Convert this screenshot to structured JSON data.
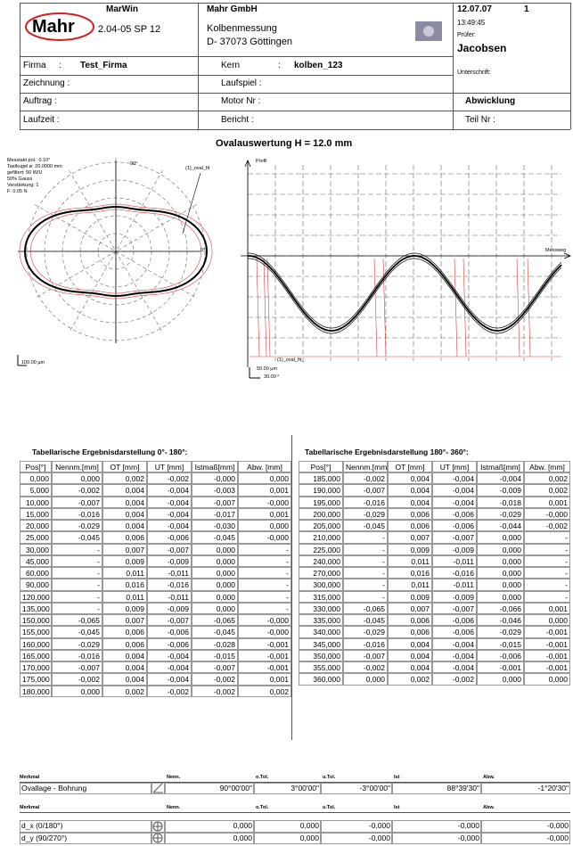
{
  "header": {
    "logo": "Mahr",
    "product": "MarWin",
    "version": "2.04-05 SP 12",
    "company": "Mahr GmbH",
    "department": "Kolbenmessung",
    "address": "D- 37073 Göttingen",
    "date": "12.07.07",
    "page": "1",
    "time": "13:49:45",
    "examiner_label": "Prüfer:",
    "examiner": "Jacobsen",
    "signature_label": "Unterschrift:"
  },
  "info": {
    "firma_label": "Firma",
    "firma_colon": ":",
    "firma": "Test_Firma",
    "kern_label": "Kern",
    "kern_colon": ":",
    "kern": "kolben_123",
    "zeichnung": "Zeichnung :",
    "laufspiel": "Laufspiel :",
    "auftrag": "Auftrag   :",
    "motor": "Motor Nr :",
    "abwicklung": "Abwicklung",
    "laufzeit": "Laufzeit   :",
    "bericht": "Bericht   :",
    "teil": "Teil Nr   :"
  },
  "title": "Ovalauswertung H = 12.0 mm",
  "polar": {
    "params": [
      "Messtakt pol.: 0.10°",
      "Tastkugel ø: 20.0000 mm",
      "gefiltert: 50 W/U",
      "50% Gauss",
      "Verstärkung: 1",
      "F: 0.05 N"
    ],
    "angle_top": "90°",
    "angle_right": "0°",
    "curve_label": "(1)_oval_fit",
    "scale": "100.00 µm"
  },
  "profile": {
    "y_label": "Profil",
    "x_label": "Messweg",
    "curve_label": "(1)_oval_fit_",
    "scale_y": "50.00 µm",
    "scale_x": "30.00 °"
  },
  "table_left": {
    "title": "Tabellarische Ergebnisdarstellung 0°- 180°:",
    "columns": [
      "Pos[°]",
      "Nennm.[mm]",
      "OT [mm]",
      "UT [mm]",
      "Istmaß[mm]",
      "Abw. [mm]"
    ],
    "rows": [
      [
        "0,000",
        "0,000",
        "0,002",
        "-0,002",
        "-0,000",
        "0,000"
      ],
      [
        "5,000",
        "-0,002",
        "0,004",
        "-0,004",
        "-0,003",
        "0,001"
      ],
      [
        "10,000",
        "-0,007",
        "0,004",
        "-0,004",
        "-0,007",
        "-0,000"
      ],
      [
        "15,000",
        "-0,016",
        "0,004",
        "-0,004",
        "-0,017",
        "0,001"
      ],
      [
        "20,000",
        "-0,029",
        "0,004",
        "-0,004",
        "-0,030",
        "0,000"
      ],
      [
        "25,000",
        "-0,045",
        "0,006",
        "-0,006",
        "-0,045",
        "-0,000"
      ],
      [
        "30,000",
        "-",
        "0,007",
        "-0,007",
        "0,000",
        "-"
      ],
      [
        "45,000",
        "-",
        "0,009",
        "-0,009",
        "0,000",
        "-"
      ],
      [
        "60,000",
        "-",
        "0,011",
        "-0,011",
        "0,000",
        "-"
      ],
      [
        "90,000",
        "-",
        "0,016",
        "-0,016",
        "0,000",
        "-"
      ],
      [
        "120,000",
        "-",
        "0,011",
        "-0,011",
        "0,000",
        "-"
      ],
      [
        "135,000",
        "-",
        "0,009",
        "-0,009",
        "0,000",
        "-"
      ],
      [
        "150,000",
        "-0,065",
        "0,007",
        "-0,007",
        "-0,065",
        "-0,000"
      ],
      [
        "155,000",
        "-0,045",
        "0,006",
        "-0,006",
        "-0,045",
        "-0,000"
      ],
      [
        "160,000",
        "-0,029",
        "0,006",
        "-0,006",
        "-0,028",
        "-0,001"
      ],
      [
        "165,000",
        "-0,016",
        "0,004",
        "-0,004",
        "-0,015",
        "-0,001"
      ],
      [
        "170,000",
        "-0,007",
        "0,004",
        "-0,004",
        "-0,007",
        "-0,001"
      ],
      [
        "175,000",
        "-0,002",
        "0,004",
        "-0,004",
        "-0,002",
        "0,001"
      ],
      [
        "180,000",
        "0,000",
        "0,002",
        "-0,002",
        "-0,002",
        "0,002"
      ]
    ]
  },
  "table_right": {
    "title": "Tabellarische Ergebnisdarstellung 180°- 360°:",
    "columns": [
      "Pos[°]",
      "Nennm.[mm]",
      "OT [mm]",
      "UT [mm]",
      "Istmaß[mm]",
      "Abw. [mm]"
    ],
    "rows": [
      [
        "185,000",
        "-0,002",
        "0,004",
        "-0,004",
        "-0,004",
        "0,002"
      ],
      [
        "190,000",
        "-0,007",
        "0,004",
        "-0,004",
        "-0,009",
        "0,002"
      ],
      [
        "195,000",
        "-0,016",
        "0,004",
        "-0,004",
        "-0,018",
        "0,001"
      ],
      [
        "200,000",
        "-0,029",
        "0,006",
        "-0,006",
        "-0,029",
        "-0,000"
      ],
      [
        "205,000",
        "-0,045",
        "0,006",
        "-0,006",
        "-0,044",
        "-0,002"
      ],
      [
        "210,000",
        "-",
        "0,007",
        "-0,007",
        "0,000",
        "-"
      ],
      [
        "225,000",
        "-",
        "0,009",
        "-0,009",
        "0,000",
        "-"
      ],
      [
        "240,000",
        "-",
        "0,011",
        "-0,011",
        "0,000",
        "-"
      ],
      [
        "270,000",
        "-",
        "0,016",
        "-0,016",
        "0,000",
        "-"
      ],
      [
        "300,000",
        "-",
        "0,011",
        "-0,011",
        "0,000",
        "-"
      ],
      [
        "315,000",
        "-",
        "0,009",
        "-0,009",
        "0,000",
        "-"
      ],
      [
        "330,000",
        "-0,065",
        "0,007",
        "-0,007",
        "-0,066",
        "0,001"
      ],
      [
        "335,000",
        "-0,045",
        "0,006",
        "-0,006",
        "-0,046",
        "0,000"
      ],
      [
        "340,000",
        "-0,029",
        "0,006",
        "-0,006",
        "-0,029",
        "-0,001"
      ],
      [
        "345,000",
        "-0,016",
        "0,004",
        "-0,004",
        "-0,015",
        "-0,001"
      ],
      [
        "350,000",
        "-0,007",
        "0,004",
        "-0,004",
        "-0,006",
        "-0,001"
      ],
      [
        "355,000",
        "-0,002",
        "0,004",
        "-0,004",
        "-0,001",
        "-0,001"
      ],
      [
        "360,000",
        "0,000",
        "0,002",
        "-0,002",
        "0,000",
        "0,000"
      ]
    ]
  },
  "features_1": {
    "columns": [
      "Merkmal",
      "Nenn.",
      "o.Tol.",
      "u.Tol.",
      "Ist",
      "Abw."
    ],
    "rows": [
      [
        "Ovallage - Bohrung",
        "90°00'00\"",
        "3°00'00\"",
        "-3°00'00\"",
        "88°39'30\"",
        "-1°20'30\""
      ]
    ]
  },
  "features_2": {
    "columns": [
      "Merkmal",
      "Nenn.",
      "o.Tol.",
      "u.Tol.",
      "Ist",
      "Abw."
    ],
    "rows": [
      [
        "d_x (0/180°)",
        "0,000",
        "0,000",
        "-0,000",
        "-0,000",
        "-0,000"
      ],
      [
        "d_y (90/270°)",
        "0,000",
        "0,000",
        "-0,000",
        "-0,000",
        "-0,000"
      ]
    ]
  }
}
